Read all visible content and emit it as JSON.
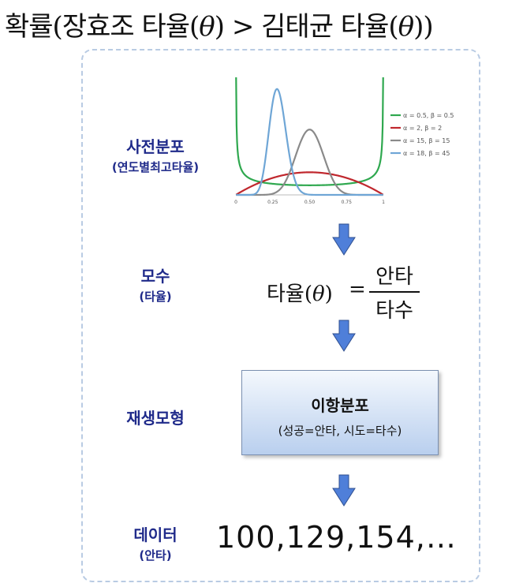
{
  "title": {
    "prefix": "확률(장효조 타율(",
    "theta1": "θ",
    "middle": ") > 김태균 타율(",
    "theta2": "θ",
    "suffix": "))"
  },
  "stages": {
    "prior": {
      "label": "사전분포",
      "sub": "(연도별최고타율)"
    },
    "parameter": {
      "label": "모수",
      "sub": "(타율)"
    },
    "model": {
      "label": "재생모형"
    },
    "data": {
      "label": "데이터",
      "sub": "(안타)"
    }
  },
  "formula": {
    "lhs_prefix": "타율(",
    "theta": "θ",
    "lhs_suffix": ")",
    "eq": "=",
    "numerator": "안타",
    "denominator": "타수"
  },
  "model_box": {
    "title": "이항분포",
    "subtitle": "(성공=안타, 시도=타수)"
  },
  "data_values": "100,129,154,…",
  "colors": {
    "label": "#1f2a8a",
    "arrow": "#4f7fd9",
    "box_top": "#f4f8fd",
    "box_bottom": "#b9cfee"
  },
  "chart_data": {
    "type": "line",
    "xlim": [
      0,
      1
    ],
    "x_ticks": [
      "0",
      "0.25",
      "0.50",
      "0.75",
      "1"
    ],
    "grid": false,
    "legend_position": "right",
    "series": [
      {
        "name": "α = 0.5, β = 0.5",
        "alpha": 0.5,
        "beta": 0.5,
        "color": "#2fa84f"
      },
      {
        "name": "α = 2, β = 2",
        "alpha": 2,
        "beta": 2,
        "color": "#c0272d"
      },
      {
        "name": "α = 15, β = 15",
        "alpha": 15,
        "beta": 15,
        "color": "#8a8a8a"
      },
      {
        "name": "α = 18, β = 45",
        "alpha": 18,
        "beta": 45,
        "color": "#6fa6d6"
      }
    ]
  }
}
